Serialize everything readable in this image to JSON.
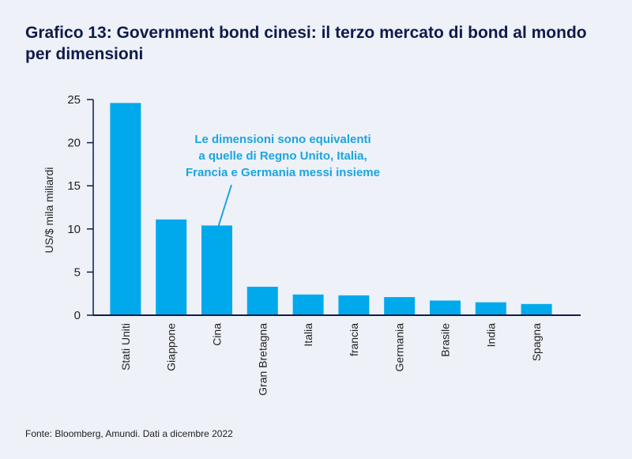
{
  "title": "Grafico 13: Government bond cinesi: il terzo mercato di bond al mondo per dimensioni",
  "source": "Fonte: Bloomberg, Amundi. Dati a dicembre 2022",
  "colors": {
    "bar": "#00a9ec",
    "axis": "#0f1b4a",
    "annotation": "#1aa5e0",
    "title": "#0f1b4a",
    "background": "#eef1f8"
  },
  "chart_data": {
    "type": "bar",
    "ylabel": "US/$ mila miliardi",
    "ylim": [
      0,
      25
    ],
    "yticks": [
      0,
      5,
      10,
      15,
      20,
      25
    ],
    "grid": false,
    "categories": [
      "Stati Uniti",
      "Giappone",
      "Cina",
      "Gran Bretagna",
      "Italia",
      "francia",
      "Germania",
      "Brasile",
      "India",
      "Spagna"
    ],
    "values": [
      24.6,
      11.1,
      10.4,
      3.3,
      2.4,
      2.3,
      2.1,
      1.7,
      1.5,
      1.3
    ],
    "annotation": {
      "lines": [
        "Le dimensioni sono equivalenti",
        "a quelle di Regno Unito, Italia,",
        "Francia e Germania messi insieme"
      ],
      "target_category": "Cina"
    }
  }
}
